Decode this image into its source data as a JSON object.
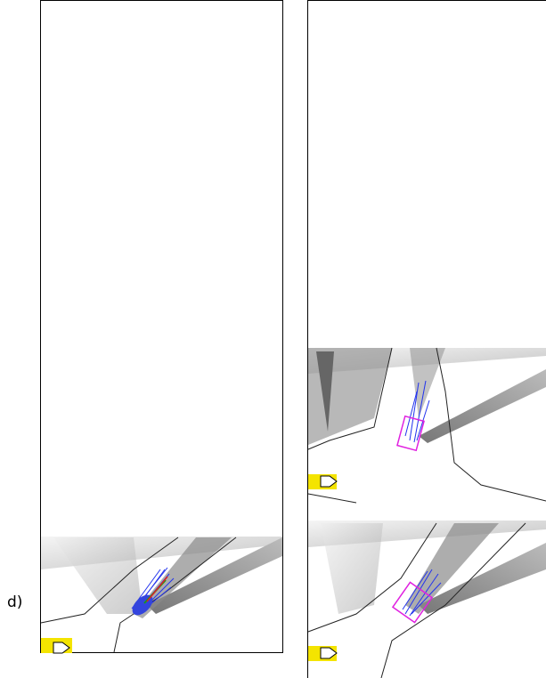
{
  "figure": {
    "label": "d)"
  }
}
